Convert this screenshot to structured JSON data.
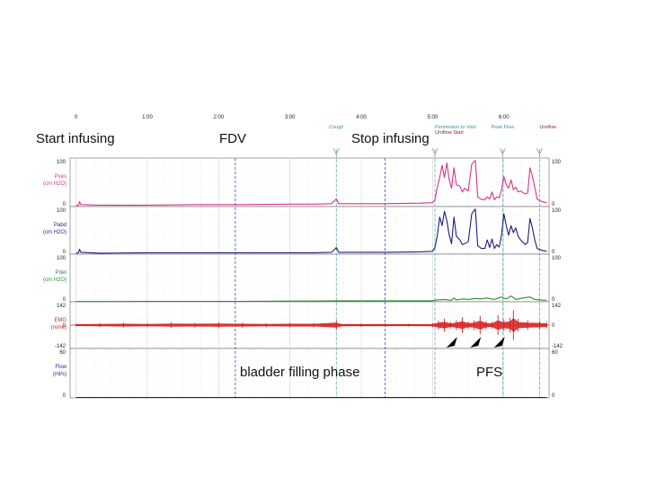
{
  "chart_data": {
    "type": "line",
    "x_unit": "min:sec",
    "time_ticks": [
      "0",
      "1:00",
      "2:00",
      "3:00",
      "4:00",
      "5:00",
      "6:00"
    ],
    "time_tick_seconds": [
      0,
      60,
      120,
      180,
      240,
      300,
      360
    ],
    "x_range_seconds": [
      -5,
      398
    ],
    "events": [
      {
        "label": "Cough",
        "t": 219,
        "color": "#3b8fa0"
      },
      {
        "label": "Permission to Void",
        "t": 302,
        "color": "#3b8fa0"
      },
      {
        "label": "Uroflow Start",
        "t": 302,
        "color": "#8b1a1a"
      },
      {
        "label": "Peak Flow",
        "t": 359,
        "color": "#3b8fa0"
      },
      {
        "label": "Uroflow",
        "t": 390,
        "color": "#8b1a1a"
      }
    ],
    "phase_markers_seconds": [
      134,
      260
    ],
    "annotations": {
      "start_infusing": "Start infusing",
      "fdv": "FDV",
      "stop_infusing": "Stop infusing",
      "filling_phase": "bladder filling phase",
      "pfs": "PFS"
    },
    "channels": [
      {
        "key": "pves",
        "name": "Pves",
        "unit": "(cm H2O)",
        "color": "#d6338c",
        "ymin": 0,
        "ymax": 100,
        "ymax_label": "100",
        "ymin_label": "0"
      },
      {
        "key": "pabd",
        "name": "Pabd",
        "unit": "(cm H2O)",
        "color": "#1b1f7a",
        "ymin": 0,
        "ymax": 100,
        "ymax_label": "100",
        "ymin_label": "0"
      },
      {
        "key": "pdet",
        "name": "Pdet",
        "unit": "(cm H2O)",
        "color": "#2e8b2e",
        "ymin": 0,
        "ymax": 100,
        "ymax_label": "100",
        "ymin_label": "0"
      },
      {
        "key": "emg",
        "name": "EMG",
        "unit": "(none)",
        "color": "#d42020",
        "ymin": -142,
        "ymax": 142,
        "ymax_label": "142",
        "ymin_label": "-142",
        "zero_label": "0"
      },
      {
        "key": "flow",
        "name": "Flow",
        "unit": "(ml/s)",
        "color": "#1b1f7a",
        "ymin": 0,
        "ymax": 60,
        "ymax_label": "60",
        "ymin_label": "0"
      }
    ],
    "series": {
      "pves": [
        [
          0,
          2
        ],
        [
          2,
          3
        ],
        [
          3,
          10
        ],
        [
          4,
          4
        ],
        [
          20,
          3
        ],
        [
          60,
          3
        ],
        [
          100,
          4
        ],
        [
          140,
          4
        ],
        [
          180,
          5
        ],
        [
          200,
          5
        ],
        [
          215,
          6
        ],
        [
          219,
          16
        ],
        [
          221,
          6
        ],
        [
          260,
          6
        ],
        [
          290,
          7
        ],
        [
          300,
          8
        ],
        [
          302,
          14
        ],
        [
          304,
          40
        ],
        [
          306,
          60
        ],
        [
          308,
          85
        ],
        [
          310,
          60
        ],
        [
          312,
          90
        ],
        [
          314,
          55
        ],
        [
          316,
          38
        ],
        [
          318,
          80
        ],
        [
          320,
          45
        ],
        [
          323,
          42
        ],
        [
          325,
          30
        ],
        [
          327,
          38
        ],
        [
          330,
          32
        ],
        [
          333,
          88
        ],
        [
          336,
          95
        ],
        [
          338,
          20
        ],
        [
          341,
          15
        ],
        [
          344,
          14
        ],
        [
          346,
          20
        ],
        [
          348,
          16
        ],
        [
          350,
          30
        ],
        [
          352,
          14
        ],
        [
          354,
          20
        ],
        [
          356,
          18
        ],
        [
          358,
          35
        ],
        [
          360,
          62
        ],
        [
          362,
          45
        ],
        [
          364,
          38
        ],
        [
          366,
          55
        ],
        [
          368,
          35
        ],
        [
          370,
          40
        ],
        [
          372,
          30
        ],
        [
          374,
          32
        ],
        [
          378,
          26
        ],
        [
          380,
          28
        ],
        [
          382,
          80
        ],
        [
          384,
          62
        ],
        [
          386,
          40
        ],
        [
          388,
          15
        ],
        [
          392,
          10
        ],
        [
          396,
          8
        ]
      ],
      "pabd": [
        [
          0,
          2
        ],
        [
          2,
          3
        ],
        [
          3,
          10
        ],
        [
          4,
          4
        ],
        [
          20,
          2
        ],
        [
          60,
          3
        ],
        [
          100,
          3
        ],
        [
          140,
          3
        ],
        [
          180,
          3
        ],
        [
          200,
          3
        ],
        [
          215,
          4
        ],
        [
          219,
          14
        ],
        [
          221,
          4
        ],
        [
          260,
          4
        ],
        [
          290,
          5
        ],
        [
          300,
          6
        ],
        [
          302,
          14
        ],
        [
          304,
          40
        ],
        [
          306,
          78
        ],
        [
          308,
          60
        ],
        [
          310,
          90
        ],
        [
          312,
          70
        ],
        [
          314,
          40
        ],
        [
          316,
          22
        ],
        [
          318,
          78
        ],
        [
          320,
          38
        ],
        [
          323,
          30
        ],
        [
          325,
          20
        ],
        [
          327,
          22
        ],
        [
          330,
          26
        ],
        [
          333,
          85
        ],
        [
          336,
          95
        ],
        [
          338,
          18
        ],
        [
          341,
          12
        ],
        [
          344,
          12
        ],
        [
          346,
          30
        ],
        [
          348,
          14
        ],
        [
          350,
          32
        ],
        [
          352,
          12
        ],
        [
          354,
          20
        ],
        [
          356,
          15
        ],
        [
          358,
          40
        ],
        [
          360,
          85
        ],
        [
          362,
          60
        ],
        [
          364,
          40
        ],
        [
          366,
          60
        ],
        [
          368,
          45
        ],
        [
          370,
          55
        ],
        [
          372,
          38
        ],
        [
          374,
          30
        ],
        [
          378,
          20
        ],
        [
          380,
          25
        ],
        [
          382,
          75
        ],
        [
          384,
          55
        ],
        [
          386,
          30
        ],
        [
          388,
          12
        ],
        [
          392,
          8
        ],
        [
          396,
          6
        ]
      ],
      "pdet": [
        [
          0,
          0.5
        ],
        [
          20,
          0.5
        ],
        [
          60,
          1
        ],
        [
          100,
          1
        ],
        [
          140,
          1
        ],
        [
          180,
          1.5
        ],
        [
          200,
          1.5
        ],
        [
          219,
          2
        ],
        [
          260,
          2
        ],
        [
          290,
          2
        ],
        [
          300,
          2
        ],
        [
          304,
          4
        ],
        [
          310,
          5
        ],
        [
          316,
          3
        ],
        [
          318,
          8
        ],
        [
          320,
          4
        ],
        [
          326,
          6
        ],
        [
          330,
          5
        ],
        [
          336,
          7
        ],
        [
          340,
          6
        ],
        [
          346,
          8
        ],
        [
          352,
          5
        ],
        [
          358,
          10
        ],
        [
          362,
          6
        ],
        [
          366,
          12
        ],
        [
          370,
          5
        ],
        [
          376,
          8
        ],
        [
          382,
          10
        ],
        [
          386,
          5
        ],
        [
          390,
          4
        ],
        [
          396,
          3
        ]
      ],
      "flow": [
        [
          0,
          0.5
        ],
        [
          100,
          0.5
        ],
        [
          200,
          0.5
        ],
        [
          300,
          0.5
        ],
        [
          396,
          0.5
        ]
      ],
      "emg_envelope": [
        [
          0,
          8
        ],
        [
          20,
          12
        ],
        [
          40,
          14
        ],
        [
          60,
          12
        ],
        [
          80,
          16
        ],
        [
          100,
          14
        ],
        [
          120,
          18
        ],
        [
          140,
          15
        ],
        [
          160,
          12
        ],
        [
          180,
          14
        ],
        [
          200,
          13
        ],
        [
          219,
          30
        ],
        [
          222,
          12
        ],
        [
          240,
          10
        ],
        [
          260,
          10
        ],
        [
          280,
          9
        ],
        [
          300,
          12
        ],
        [
          305,
          28
        ],
        [
          310,
          40
        ],
        [
          315,
          20
        ],
        [
          320,
          30
        ],
        [
          325,
          48
        ],
        [
          330,
          22
        ],
        [
          335,
          30
        ],
        [
          340,
          55
        ],
        [
          345,
          25
        ],
        [
          350,
          20
        ],
        [
          355,
          60
        ],
        [
          360,
          35
        ],
        [
          365,
          45
        ],
        [
          368,
          90
        ],
        [
          372,
          38
        ],
        [
          380,
          30
        ],
        [
          390,
          25
        ],
        [
          396,
          18
        ]
      ]
    },
    "arrowheads_seconds": [
      320,
      340,
      360
    ],
    "grid": true
  }
}
